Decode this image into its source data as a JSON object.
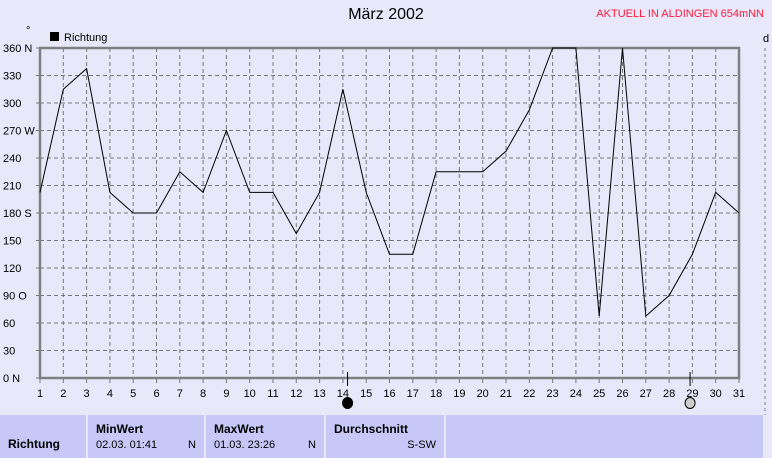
{
  "title": "März 2002",
  "station": "AKTUELL IN ALDINGEN 654mNN",
  "unit_symbol": "°",
  "right_axis_label": "d",
  "chart_data": {
    "type": "line",
    "title": "März 2002",
    "legend": [
      "Richtung"
    ],
    "legend_placement": "top-left",
    "grid": true,
    "x": [
      1,
      2,
      3,
      4,
      5,
      6,
      7,
      8,
      9,
      10,
      11,
      12,
      13,
      14,
      15,
      16,
      17,
      18,
      19,
      20,
      21,
      22,
      23,
      24,
      25,
      26,
      27,
      28,
      29,
      30,
      31
    ],
    "series": [
      {
        "name": "Richtung",
        "values": [
          202.5,
          315,
          337.5,
          202.5,
          180,
          180,
          225,
          202.5,
          270,
          202.5,
          202.5,
          157.5,
          202.5,
          315,
          202.5,
          135,
          135,
          225,
          225,
          225,
          247.5,
          292.5,
          360,
          360,
          67.5,
          360,
          67.5,
          90,
          135,
          202.5,
          180
        ]
      }
    ],
    "ylim": [
      0,
      360
    ],
    "xlim": [
      1,
      31
    ],
    "yticks": [
      {
        "v": 0,
        "l": "0  N"
      },
      {
        "v": 30,
        "l": "30"
      },
      {
        "v": 60,
        "l": "60"
      },
      {
        "v": 90,
        "l": "90  O"
      },
      {
        "v": 120,
        "l": "120"
      },
      {
        "v": 150,
        "l": "150"
      },
      {
        "v": 180,
        "l": "180 S"
      },
      {
        "v": 210,
        "l": "210"
      },
      {
        "v": 240,
        "l": "240"
      },
      {
        "v": 270,
        "l": "270 W"
      },
      {
        "v": 300,
        "l": "300"
      },
      {
        "v": 330,
        "l": "330"
      },
      {
        "v": 360,
        "l": "360 N"
      }
    ],
    "moon_phases": [
      {
        "day": 14.2,
        "phase": "full-moon"
      },
      {
        "day": 28.9,
        "phase": "new-moon"
      }
    ]
  },
  "summary": {
    "row_label": "Richtung",
    "min": {
      "label": "MinWert",
      "date": "02.03.  01:41",
      "value": "N"
    },
    "max": {
      "label": "MaxWert",
      "date": "01.03.  23:26",
      "value": "N"
    },
    "avg": {
      "label": "Durchschnitt",
      "value": "S-SW"
    }
  }
}
